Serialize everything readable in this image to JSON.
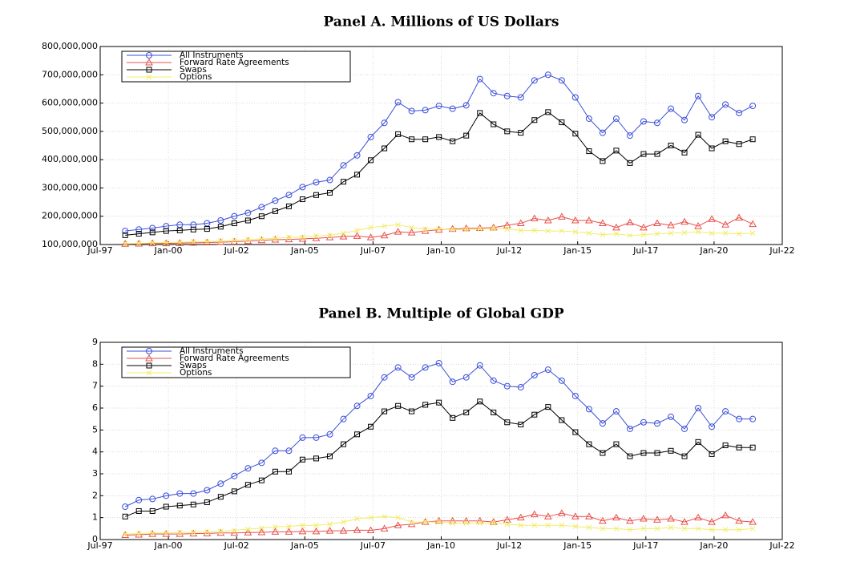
{
  "chart_data": [
    {
      "type": "line",
      "title": "Panel A. Millions of US Dollars",
      "x": [
        "Jun-98",
        "Dec-98",
        "Jun-99",
        "Dec-99",
        "Jun-00",
        "Dec-00",
        "Jun-01",
        "Dec-01",
        "Jun-02",
        "Dec-02",
        "Jun-03",
        "Dec-03",
        "Jun-04",
        "Dec-04",
        "Jun-05",
        "Dec-05",
        "Jun-06",
        "Dec-06",
        "Jun-07",
        "Dec-07",
        "Jun-08",
        "Dec-08",
        "Jun-09",
        "Dec-09",
        "Jun-10",
        "Dec-10",
        "Jun-11",
        "Dec-11",
        "Jun-12",
        "Dec-12",
        "Jun-13",
        "Dec-13",
        "Jun-14",
        "Dec-14",
        "Jun-15",
        "Dec-15",
        "Jun-16",
        "Dec-16",
        "Jun-17",
        "Dec-17",
        "Jun-18",
        "Dec-18",
        "Jun-19",
        "Dec-19",
        "Jun-20",
        "Dec-20",
        "Jun-21"
      ],
      "series": [
        {
          "name": "All Instruments",
          "color": "#3a4fd8",
          "marker": "circle",
          "values": [
            148000000,
            153000000,
            158000000,
            165000000,
            170000000,
            170000000,
            175000000,
            185000000,
            200000000,
            212000000,
            232000000,
            255000000,
            275000000,
            303000000,
            320000000,
            328000000,
            380000000,
            415000000,
            480000000,
            530000000,
            603000000,
            572000000,
            575000000,
            590000000,
            580000000,
            592000000,
            685000000,
            635000000,
            625000000,
            620000000,
            680000000,
            700000000,
            680000000,
            620000000,
            545000000,
            495000000,
            545000000,
            485000000,
            535000000,
            530000000,
            580000000,
            540000000,
            625000000,
            550000000,
            595000000,
            565000000,
            590000000
          ]
        },
        {
          "name": "Forward Rate Agreements",
          "color": "#e8504a",
          "marker": "triangle",
          "values": [
            102000000,
            103000000,
            104000000,
            104000000,
            105000000,
            106000000,
            107000000,
            108000000,
            110000000,
            112000000,
            115000000,
            117000000,
            118000000,
            120000000,
            122000000,
            125000000,
            128000000,
            130000000,
            125000000,
            132000000,
            145000000,
            142000000,
            148000000,
            152000000,
            155000000,
            157000000,
            158000000,
            160000000,
            168000000,
            175000000,
            192000000,
            185000000,
            198000000,
            185000000,
            185000000,
            175000000,
            160000000,
            178000000,
            160000000,
            175000000,
            168000000,
            180000000,
            165000000,
            190000000,
            170000000,
            195000000,
            172000000
          ]
        },
        {
          "name": "Swaps",
          "color": "#000000",
          "marker": "square",
          "values": [
            133000000,
            138000000,
            143000000,
            148000000,
            150000000,
            153000000,
            155000000,
            163000000,
            175000000,
            185000000,
            200000000,
            218000000,
            235000000,
            260000000,
            275000000,
            283000000,
            322000000,
            347000000,
            398000000,
            440000000,
            490000000,
            472000000,
            472000000,
            480000000,
            465000000,
            485000000,
            565000000,
            525000000,
            500000000,
            495000000,
            540000000,
            568000000,
            532000000,
            492000000,
            430000000,
            395000000,
            432000000,
            388000000,
            420000000,
            420000000,
            450000000,
            425000000,
            488000000,
            440000000,
            465000000,
            455000000,
            472000000
          ]
        },
        {
          "name": "Options",
          "color": "#f2ec6a",
          "marker": "x",
          "values": [
            103000000,
            104000000,
            106000000,
            107000000,
            108000000,
            110000000,
            111000000,
            113000000,
            115000000,
            118000000,
            120000000,
            122000000,
            125000000,
            127000000,
            130000000,
            133000000,
            140000000,
            150000000,
            160000000,
            165000000,
            170000000,
            160000000,
            155000000,
            155000000,
            152000000,
            153000000,
            155000000,
            157000000,
            155000000,
            150000000,
            150000000,
            148000000,
            148000000,
            145000000,
            140000000,
            135000000,
            138000000,
            132000000,
            135000000,
            138000000,
            140000000,
            142000000,
            145000000,
            140000000,
            140000000,
            138000000,
            140000000
          ]
        }
      ],
      "xlim": [
        "Jul-97",
        "Jul-22"
      ],
      "xticks": [
        "Jul-97",
        "Jan-00",
        "Jul-02",
        "Jan-05",
        "Jul-07",
        "Jan-10",
        "Jul-12",
        "Jan-15",
        "Jul-17",
        "Jan-20",
        "Jul-22"
      ],
      "ylim": [
        100000000,
        800000000
      ],
      "yticks": [
        {
          "value": 100000000,
          "label": "100,000,000"
        },
        {
          "value": 200000000,
          "label": "200,000,000"
        },
        {
          "value": 300000000,
          "label": "300,000,000"
        },
        {
          "value": 400000000,
          "label": "400,000,000"
        },
        {
          "value": 500000000,
          "label": "500,000,000"
        },
        {
          "value": 600000000,
          "label": "600,000,000"
        },
        {
          "value": 700000000,
          "label": "700,000,000"
        },
        {
          "value": 800000000,
          "label": "800,000,000"
        }
      ],
      "grid": true,
      "legend": "upper left"
    },
    {
      "type": "line",
      "title": "Panel B. Multiple of Global GDP",
      "x": [
        "Jun-98",
        "Dec-98",
        "Jun-99",
        "Dec-99",
        "Jun-00",
        "Dec-00",
        "Jun-01",
        "Dec-01",
        "Jun-02",
        "Dec-02",
        "Jun-03",
        "Dec-03",
        "Jun-04",
        "Dec-04",
        "Jun-05",
        "Dec-05",
        "Jun-06",
        "Dec-06",
        "Jun-07",
        "Dec-07",
        "Jun-08",
        "Dec-08",
        "Jun-09",
        "Dec-09",
        "Jun-10",
        "Dec-10",
        "Jun-11",
        "Dec-11",
        "Jun-12",
        "Dec-12",
        "Jun-13",
        "Dec-13",
        "Jun-14",
        "Dec-14",
        "Jun-15",
        "Dec-15",
        "Jun-16",
        "Dec-16",
        "Jun-17",
        "Dec-17",
        "Jun-18",
        "Dec-18",
        "Jun-19",
        "Dec-19",
        "Jun-20",
        "Dec-20",
        "Jun-21"
      ],
      "series": [
        {
          "name": "All Instruments",
          "color": "#3a4fd8",
          "marker": "circle",
          "values": [
            1.5,
            1.8,
            1.85,
            2.0,
            2.1,
            2.1,
            2.25,
            2.55,
            2.9,
            3.25,
            3.5,
            4.05,
            4.05,
            4.65,
            4.65,
            4.8,
            5.5,
            6.1,
            6.55,
            7.4,
            7.85,
            7.4,
            7.85,
            8.05,
            7.2,
            7.4,
            7.95,
            7.25,
            7.0,
            6.95,
            7.5,
            7.75,
            7.25,
            6.55,
            5.95,
            5.3,
            5.85,
            5.05,
            5.35,
            5.3,
            5.6,
            5.05,
            6.0,
            5.15,
            5.85,
            5.5,
            5.5
          ]
        },
        {
          "name": "Forward Rate Agreements",
          "color": "#e8504a",
          "marker": "triangle",
          "values": [
            0.2,
            0.22,
            0.25,
            0.25,
            0.25,
            0.27,
            0.28,
            0.3,
            0.3,
            0.32,
            0.33,
            0.35,
            0.35,
            0.37,
            0.37,
            0.4,
            0.4,
            0.43,
            0.42,
            0.5,
            0.65,
            0.7,
            0.8,
            0.85,
            0.85,
            0.85,
            0.85,
            0.8,
            0.9,
            1.0,
            1.15,
            1.05,
            1.2,
            1.05,
            1.05,
            0.85,
            1.0,
            0.85,
            0.95,
            0.9,
            0.95,
            0.8,
            1.0,
            0.8,
            1.1,
            0.85,
            0.8
          ]
        },
        {
          "name": "Swaps",
          "color": "#000000",
          "marker": "square",
          "values": [
            1.05,
            1.3,
            1.3,
            1.5,
            1.55,
            1.6,
            1.7,
            1.95,
            2.2,
            2.5,
            2.7,
            3.1,
            3.1,
            3.65,
            3.7,
            3.8,
            4.35,
            4.8,
            5.15,
            5.85,
            6.1,
            5.85,
            6.15,
            6.25,
            5.55,
            5.8,
            6.3,
            5.8,
            5.35,
            5.25,
            5.7,
            6.05,
            5.45,
            4.9,
            4.35,
            3.95,
            4.35,
            3.8,
            3.95,
            3.95,
            4.05,
            3.8,
            4.45,
            3.9,
            4.3,
            4.2,
            4.2
          ]
        },
        {
          "name": "Options",
          "color": "#f2ec6a",
          "marker": "x",
          "values": [
            0.25,
            0.27,
            0.3,
            0.3,
            0.32,
            0.33,
            0.35,
            0.37,
            0.42,
            0.47,
            0.52,
            0.58,
            0.6,
            0.65,
            0.65,
            0.7,
            0.8,
            0.95,
            1.0,
            1.05,
            1.0,
            0.8,
            0.8,
            0.8,
            0.75,
            0.75,
            0.75,
            0.75,
            0.7,
            0.65,
            0.65,
            0.65,
            0.65,
            0.6,
            0.55,
            0.5,
            0.5,
            0.45,
            0.5,
            0.5,
            0.55,
            0.5,
            0.5,
            0.45,
            0.45,
            0.45,
            0.5
          ]
        }
      ],
      "xlim": [
        "Jul-97",
        "Jul-22"
      ],
      "xticks": [
        "Jul-97",
        "Jan-00",
        "Jul-02",
        "Jan-05",
        "Jul-07",
        "Jan-10",
        "Jul-12",
        "Jan-15",
        "Jul-17",
        "Jan-20",
        "Jul-22"
      ],
      "ylim": [
        0,
        9
      ],
      "yticks": [
        0,
        1,
        2,
        3,
        4,
        5,
        6,
        7,
        8,
        9
      ],
      "grid": true,
      "legend": "upper left"
    }
  ]
}
